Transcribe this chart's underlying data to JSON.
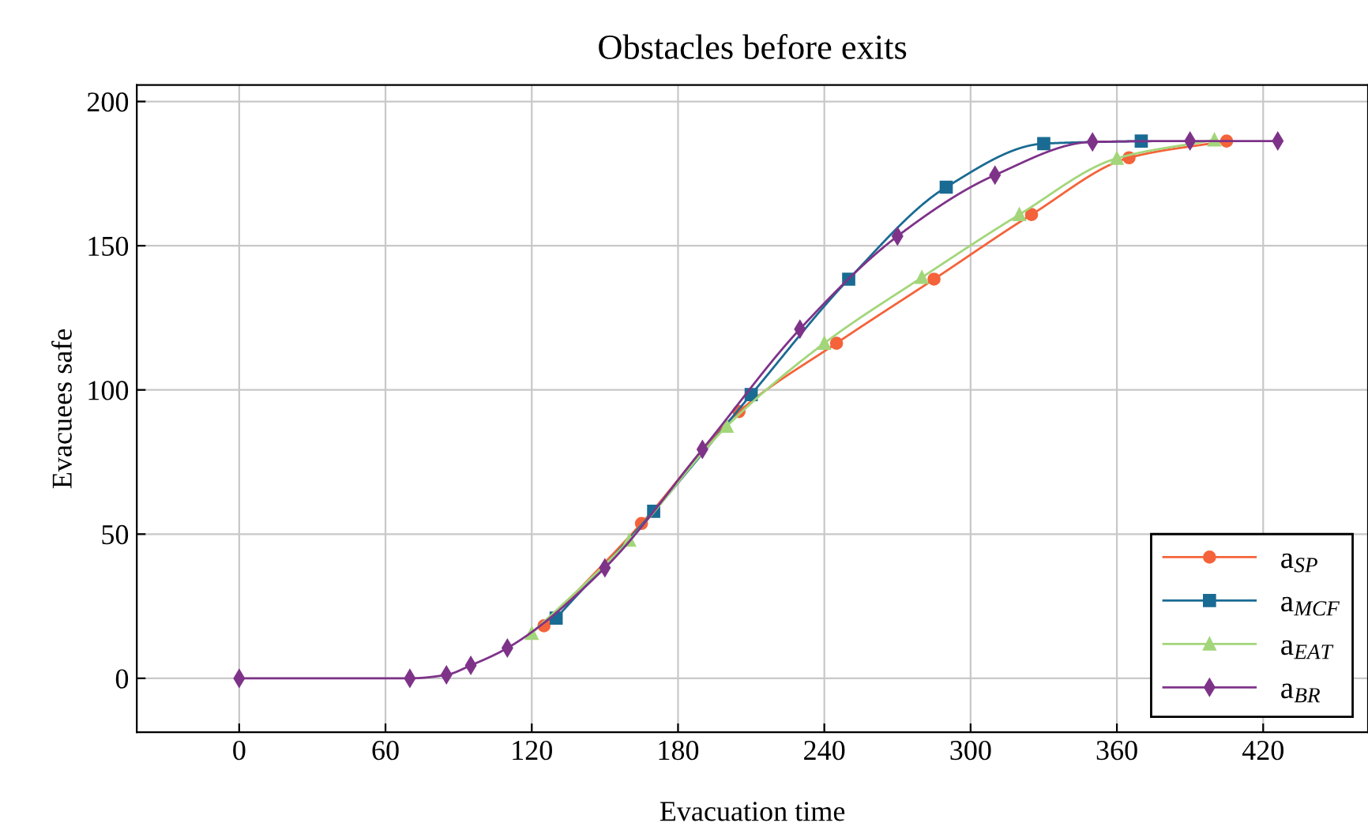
{
  "chart_data": {
    "type": "line",
    "title": "Obstacles before exits",
    "xlabel": "Evacuation time",
    "ylabel": "Evacuees safe",
    "xlim": [
      -42,
      463
    ],
    "ylim": [
      -18.7,
      205.7
    ],
    "xticks": [
      0,
      60,
      120,
      180,
      240,
      300,
      360,
      420
    ],
    "yticks": [
      0,
      50,
      100,
      150,
      200
    ],
    "grid": true,
    "legend": "bottom right",
    "series": [
      {
        "name": "a$_{SP}$",
        "color": "#f4633a",
        "marker": "circle",
        "x": [
          125,
          165,
          205,
          245,
          285,
          325,
          365,
          405
        ],
        "values": [
          18.2,
          53.7,
          92.5,
          116.2,
          138.4,
          160.8,
          180.5,
          186.3
        ]
      },
      {
        "name": "a$_{MCF}$",
        "color": "#1a6b93",
        "marker": "square",
        "x": [
          130,
          170,
          210,
          250,
          290,
          330,
          370
        ],
        "values": [
          20.9,
          57.9,
          98.4,
          138.4,
          170.3,
          185.4,
          186.3
        ]
      },
      {
        "name": "a$_{EAT}$",
        "color": "#a3d67a",
        "marker": "triangle",
        "x": [
          120,
          160,
          200,
          240,
          280,
          320,
          360,
          400
        ],
        "values": [
          15.6,
          47.9,
          87.4,
          116.2,
          139,
          160.8,
          180.3,
          186.7
        ]
      },
      {
        "name": "a$_{BR}$",
        "color": "#7e3389",
        "marker": "diamond",
        "x": [
          0,
          70,
          85,
          95,
          110,
          150,
          190,
          230,
          270,
          310,
          350,
          390,
          426
        ],
        "values": [
          0,
          0,
          1.2,
          4.5,
          10.5,
          38.3,
          79.4,
          121.1,
          153.3,
          174.5,
          186,
          186.3,
          186.3
        ]
      }
    ]
  }
}
